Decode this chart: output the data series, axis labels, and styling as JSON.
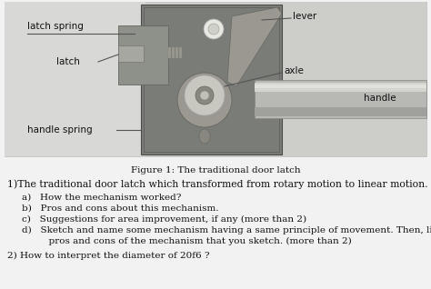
{
  "bg_color": "#e8e8e8",
  "figure_caption": "Figure 1: The traditional door latch",
  "caption_fontsize": 7.5,
  "question1_text": "1)The traditional door latch which transformed from rotary motion to linear motion.",
  "question1_fontsize": 7.8,
  "item_d_line1": "d)   Sketch and name some mechanism having a same principle of movement. Then, list out the",
  "item_d_line2": "      pros and cons of the mechanism that you sketch. (more than 2)",
  "question2_text": "2) How to interpret the diameter of 20f6 ?",
  "item_fontsize": 7.5,
  "label_fontsize": 7.5,
  "text_color": "#111111",
  "photo_bg": "#c9c9c4",
  "mech_plate_color": "#7a7c78",
  "mech_plate_dark": "#656660",
  "latch_body_color": "#888a85",
  "handle_color": "#b0b0b0",
  "handle_highlight": "#d5d5d5",
  "axle_color": "#c8c8c0",
  "white_color": "#f0f0ee",
  "line_color": "#555555",
  "items": [
    "a)   How the mechanism worked?",
    "b)   Pros and cons about this mechanism.",
    "c)   Suggestions for area improvement, if any (more than 2)"
  ]
}
